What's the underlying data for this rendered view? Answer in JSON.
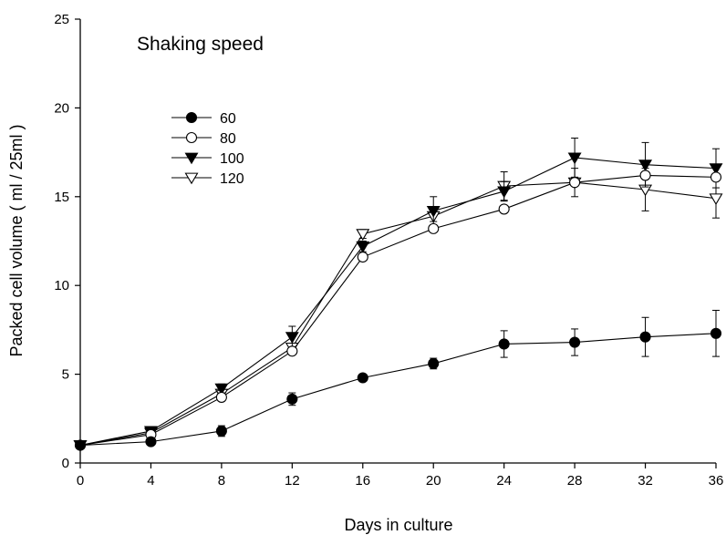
{
  "chart_data": {
    "type": "line",
    "title": "Shaking speed",
    "xlabel": "Days in culture",
    "ylabel": "Packed cell volume ( ml / 25ml )",
    "xlim": [
      0,
      36
    ],
    "ylim": [
      0,
      25
    ],
    "xticks": [
      0,
      4,
      8,
      12,
      16,
      20,
      24,
      28,
      32,
      36
    ],
    "yticks": [
      0,
      5,
      10,
      15,
      20,
      25
    ],
    "grid": false,
    "legend_position": "upper-left",
    "x": [
      0,
      4,
      8,
      12,
      16,
      20,
      24,
      28,
      32,
      36
    ],
    "series": [
      {
        "name": "60",
        "marker": "filled-circle",
        "values": [
          1.0,
          1.2,
          1.8,
          3.6,
          4.8,
          5.6,
          6.7,
          6.8,
          7.1,
          7.3
        ],
        "errors": [
          0,
          0.2,
          0.3,
          0.35,
          0.2,
          0.3,
          0.75,
          0.75,
          1.1,
          1.3
        ]
      },
      {
        "name": "80",
        "marker": "open-circle",
        "values": [
          1.0,
          1.6,
          3.7,
          6.3,
          11.6,
          13.2,
          14.3,
          15.8,
          16.2,
          16.1
        ]
      },
      {
        "name": "100",
        "marker": "filled-triangle-down",
        "values": [
          1.0,
          1.8,
          4.2,
          7.1,
          12.2,
          14.2,
          15.3,
          17.2,
          16.8,
          16.6
        ],
        "errors": [
          0,
          0.1,
          0.25,
          0.6,
          0.3,
          0.8,
          0.55,
          1.1,
          1.25,
          1.1
        ]
      },
      {
        "name": "120",
        "marker": "open-triangle-down",
        "values": [
          1.0,
          1.7,
          3.9,
          6.5,
          12.9,
          13.9,
          15.6,
          15.8,
          15.4,
          14.9
        ],
        "errors": [
          0,
          0.1,
          0.2,
          0.2,
          0.25,
          0.3,
          0.8,
          0.8,
          1.2,
          1.1
        ]
      }
    ]
  }
}
